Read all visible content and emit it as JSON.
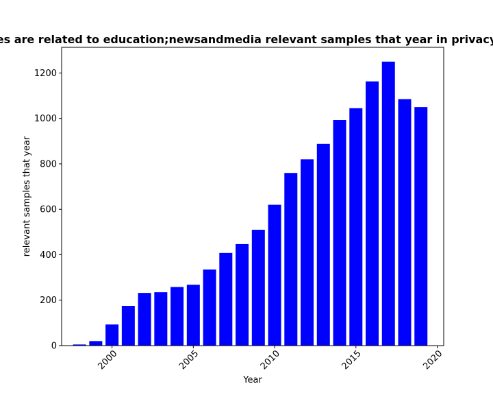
{
  "chart_data": {
    "type": "bar",
    "title": "es are related to education;newsandmedia relevant samples that year in privacy",
    "xlabel": "Year",
    "ylabel": "relevant samples that year",
    "x": [
      1998,
      1999,
      2000,
      2001,
      2002,
      2003,
      2004,
      2005,
      2006,
      2007,
      2008,
      2009,
      2010,
      2011,
      2012,
      2013,
      2014,
      2015,
      2016,
      2017,
      2018,
      2019
    ],
    "values": [
      5,
      20,
      93,
      175,
      232,
      235,
      258,
      268,
      335,
      408,
      447,
      510,
      620,
      760,
      820,
      888,
      993,
      1045,
      1163,
      1250,
      1085,
      1050
    ],
    "xlim": [
      1996.9,
      2020.4
    ],
    "ylim": [
      0,
      1313
    ],
    "xticks": [
      2000,
      2005,
      2010,
      2015,
      2020
    ],
    "yticks": [
      0,
      200,
      400,
      600,
      800,
      1000,
      1200
    ],
    "bar_color": "#0000ff",
    "grid": false,
    "legend": "none"
  }
}
